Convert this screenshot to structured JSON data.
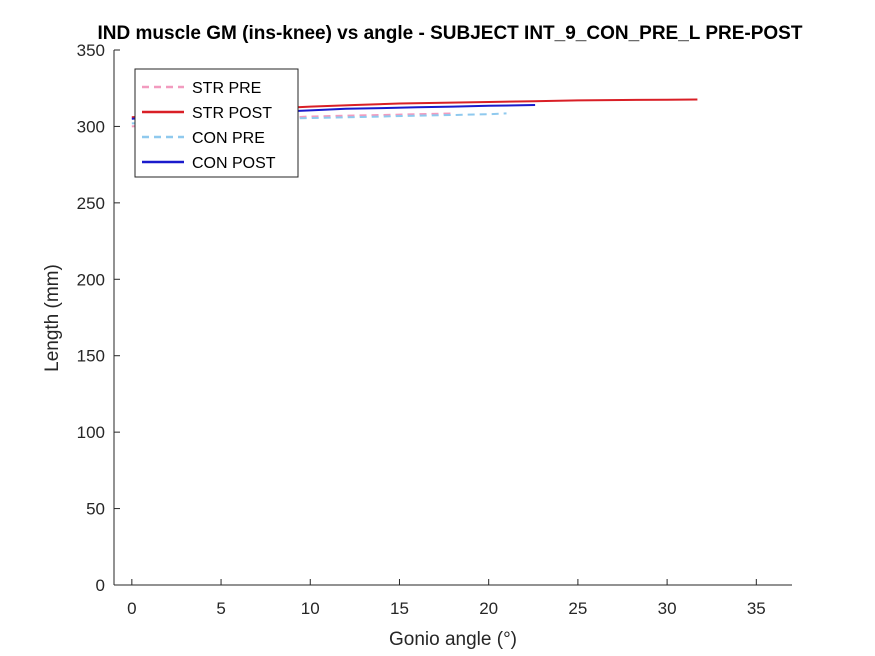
{
  "chart_data": {
    "type": "line",
    "title": "IND muscle GM (ins-knee) vs angle - SUBJECT INT_9_CON_PRE_L PRE-POST",
    "xlabel": "Gonio angle (°)",
    "ylabel": "Length (mm)",
    "xlim": [
      -1,
      37
    ],
    "ylim": [
      0,
      350
    ],
    "xticks": [
      0,
      5,
      10,
      15,
      20,
      25,
      30,
      35
    ],
    "yticks": [
      0,
      50,
      100,
      150,
      200,
      250,
      300,
      350
    ],
    "grid": false,
    "legend_position": "top-left",
    "series": [
      {
        "name": "STR PRE",
        "color": "#f29bbf",
        "style": "dashed",
        "x": [
          0,
          2,
          4,
          6,
          8,
          10,
          12,
          14,
          16,
          18
        ],
        "y": [
          300,
          301.5,
          303,
          304.5,
          305.5,
          306.5,
          307,
          307.5,
          308,
          308.5
        ]
      },
      {
        "name": "STR POST",
        "color": "#d91f26",
        "style": "solid",
        "x": [
          0,
          2.5,
          5,
          7.5,
          10,
          12.5,
          15,
          17.5,
          20,
          22.5,
          25,
          27.5,
          30,
          31.7
        ],
        "y": [
          306,
          308,
          310,
          311.5,
          313,
          314,
          315,
          315.5,
          316,
          316.5,
          317,
          317.3,
          317.5,
          317.6
        ]
      },
      {
        "name": "CON PRE",
        "color": "#8fc9ee",
        "style": "dashed",
        "x": [
          0,
          2,
          4,
          6,
          8,
          10,
          12,
          14,
          16,
          18,
          20,
          21
        ],
        "y": [
          302,
          303,
          303.5,
          304.5,
          305,
          305.5,
          306,
          306.5,
          307,
          307.5,
          308,
          308.5
        ]
      },
      {
        "name": "CON POST",
        "color": "#1a1acc",
        "style": "solid",
        "x": [
          0,
          2,
          4,
          6,
          8,
          10,
          12,
          14,
          16,
          18,
          20,
          22.6
        ],
        "y": [
          305,
          306.5,
          307.5,
          308.5,
          309.5,
          310.5,
          311.5,
          312,
          312.5,
          313,
          313.5,
          314
        ]
      }
    ]
  }
}
